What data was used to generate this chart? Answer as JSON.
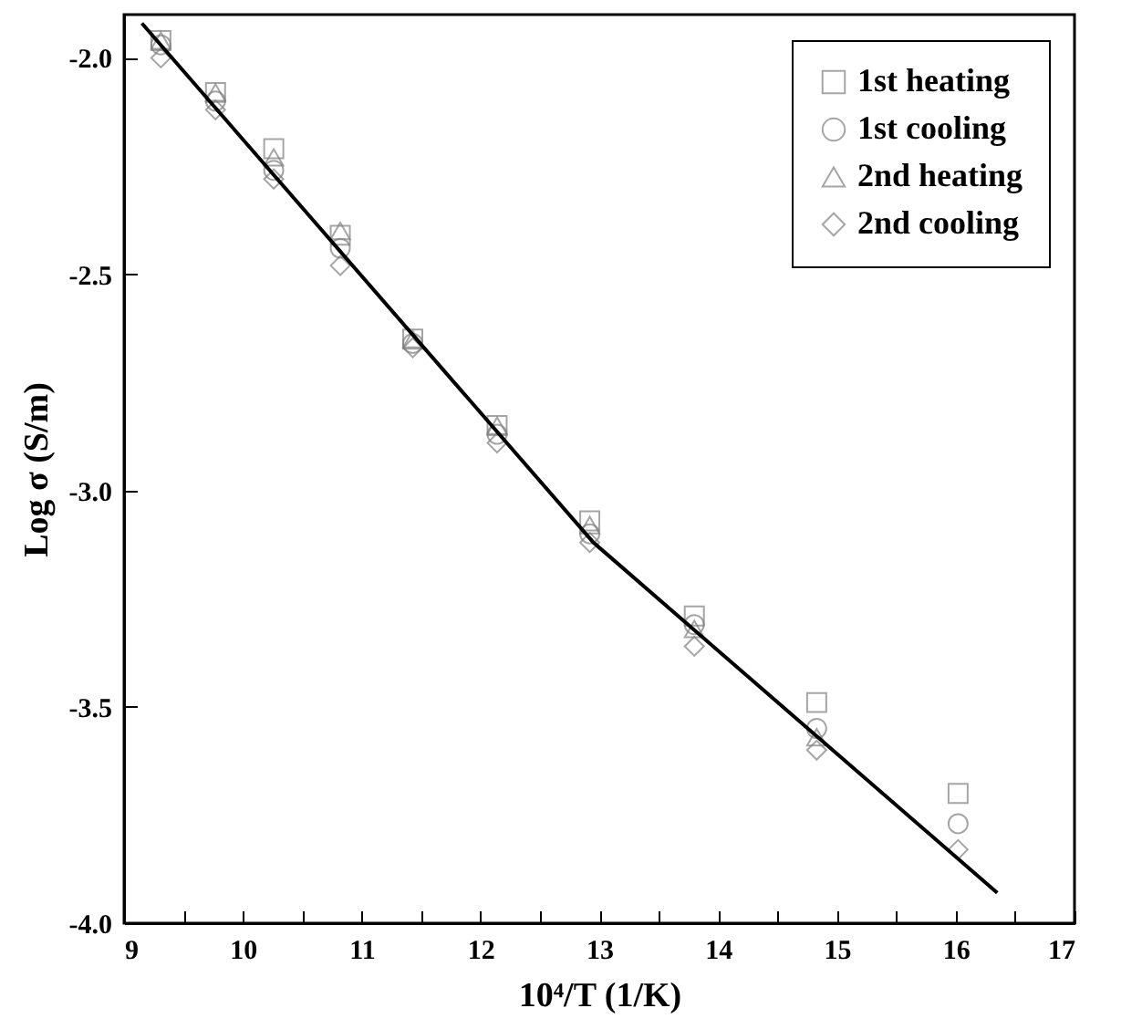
{
  "chart_data": {
    "type": "scatter",
    "xlabel": "10⁴/T (1/K)",
    "ylabel": "Log σ (S/m)",
    "x": [
      9.31,
      9.77,
      10.26,
      10.82,
      11.43,
      12.14,
      12.92,
      13.8,
      14.83,
      16.02
    ],
    "series": [
      {
        "name": "1st heating",
        "color": "#808080",
        "marker": "square",
        "values": [
          -1.96,
          -2.08,
          -2.21,
          -2.41,
          -2.65,
          -2.85,
          -3.07,
          -3.29,
          -3.49,
          -3.7
        ]
      },
      {
        "name": "1st cooling",
        "color": "#808080",
        "marker": "circle",
        "values": [
          -1.97,
          -2.1,
          -2.26,
          -2.44,
          -2.66,
          -2.87,
          -3.1,
          -3.31,
          -3.55,
          -3.77
        ]
      },
      {
        "name": "2nd heating",
        "color": "#808080",
        "marker": "triangle",
        "values": [
          -1.96,
          -2.08,
          -2.23,
          -2.4,
          -2.65,
          -2.85,
          -3.08,
          -3.32,
          -3.57,
          null
        ]
      },
      {
        "name": "2nd cooling",
        "color": "#808080",
        "marker": "diamond",
        "values": [
          -2.0,
          -2.12,
          -2.28,
          -2.48,
          -2.67,
          -2.89,
          -3.12,
          -3.36,
          -3.6,
          -3.83
        ]
      },
      {
        "type": "line",
        "color": "#000000",
        "x": [
          9.15,
          12.95,
          16.35
        ],
        "values": [
          -1.92,
          -3.12,
          -3.93
        ]
      }
    ],
    "xlim": [
      9,
      17
    ],
    "xticks": [
      9,
      {
        "value": 9.5,
        "label": null
      },
      10,
      {
        "value": 10.5,
        "label": null
      },
      11,
      {
        "value": 11.5,
        "label": null
      },
      12,
      {
        "value": 12.5,
        "label": null
      },
      13,
      {
        "value": 13.5,
        "label": null
      },
      14,
      {
        "value": 14.5,
        "label": null
      },
      15,
      {
        "value": 15.5,
        "label": null
      },
      16,
      {
        "value": 16.5,
        "label": null
      },
      17
    ],
    "ylim": [
      -4.0,
      -1.9
    ],
    "yticks": [
      {
        "value": -4,
        "label": "-4.0"
      },
      {
        "value": -3.5,
        "label": "-3.5"
      },
      {
        "value": -3,
        "label": "-3.0"
      },
      {
        "value": -2.5,
        "label": "-2.5"
      },
      {
        "value": -2,
        "label": "-2.0"
      }
    ],
    "legend": "top right",
    "grid": false
  }
}
